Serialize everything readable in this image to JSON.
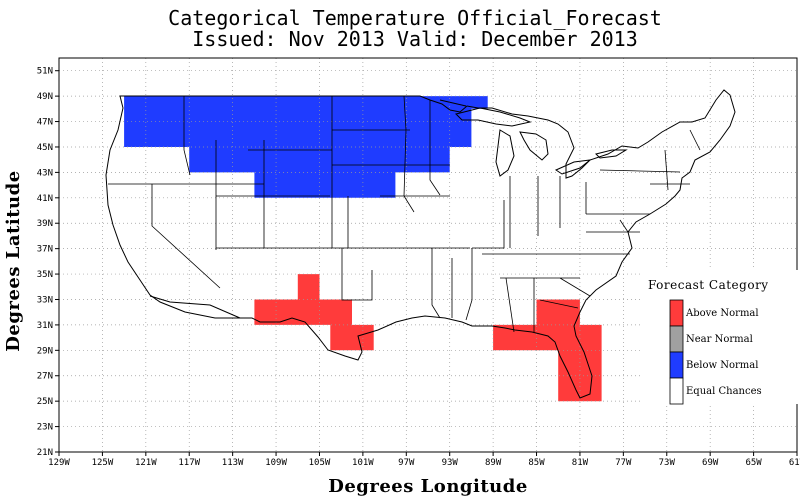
{
  "header": {
    "title_line1": "Categorical Temperature Official_Forecast",
    "title_line2": "Issued: Nov 2013 Valid: December 2013"
  },
  "axes": {
    "xlabel": "Degrees Longitude",
    "ylabel": "Degrees Latitude"
  },
  "chart_data": {
    "type": "heatmap",
    "title": "Categorical Temperature Official_Forecast",
    "subtitle": "Issued: Nov 2013 Valid: December 2013",
    "xlabel": "Degrees Longitude",
    "ylabel": "Degrees Latitude",
    "xlim": [
      -129,
      -61
    ],
    "ylim": [
      21,
      52
    ],
    "x_ticks": [
      -129,
      -125,
      -121,
      -117,
      -113,
      -109,
      -105,
      -101,
      -97,
      -93,
      -89,
      -85,
      -81,
      -77,
      -73,
      -69,
      -65,
      -61
    ],
    "x_tick_labels": [
      "129W",
      "125W",
      "121W",
      "117W",
      "113W",
      "109W",
      "105W",
      "101W",
      "97W",
      "93W",
      "89W",
      "85W",
      "81W",
      "77W",
      "73W",
      "69W",
      "65W",
      "61W"
    ],
    "y_ticks": [
      21,
      23,
      25,
      27,
      29,
      31,
      33,
      35,
      37,
      39,
      41,
      43,
      45,
      47,
      49,
      51
    ],
    "y_tick_labels": [
      "21N",
      "23N",
      "25N",
      "27N",
      "29N",
      "31N",
      "33N",
      "35N",
      "37N",
      "39N",
      "41N",
      "43N",
      "45N",
      "47N",
      "49N",
      "51N"
    ],
    "grid": true,
    "regions": [
      {
        "category": "Below Normal",
        "polygon": [
          [
            -123,
            49
          ],
          [
            -89.5,
            49
          ],
          [
            -89.5,
            48
          ],
          [
            -91,
            48
          ],
          [
            -91,
            45
          ],
          [
            -93,
            45
          ],
          [
            -93,
            43
          ],
          [
            -98,
            43
          ],
          [
            -98,
            41
          ],
          [
            -111,
            41
          ],
          [
            -111,
            43
          ],
          [
            -117,
            43
          ],
          [
            -117,
            45
          ],
          [
            -123,
            45
          ]
        ]
      },
      {
        "category": "Above Normal",
        "polygon": [
          [
            -111,
            33
          ],
          [
            -107,
            33
          ],
          [
            -107,
            35
          ],
          [
            -105,
            35
          ],
          [
            -105,
            33
          ],
          [
            -102,
            33
          ],
          [
            -102,
            31
          ],
          [
            -100,
            31
          ],
          [
            -100,
            29
          ],
          [
            -104,
            29
          ],
          [
            -104,
            31
          ],
          [
            -111,
            31
          ]
        ]
      },
      {
        "category": "Above Normal",
        "polygon": [
          [
            -85,
            33
          ],
          [
            -81,
            33
          ],
          [
            -81,
            31
          ],
          [
            -79,
            31
          ],
          [
            -79,
            25
          ],
          [
            -83,
            25
          ],
          [
            -83,
            29
          ],
          [
            -89,
            29
          ],
          [
            -89,
            31
          ],
          [
            -85,
            31
          ]
        ]
      }
    ],
    "legend": {
      "title": "Forecast Category",
      "position": "right",
      "entries": [
        {
          "label": "Above Normal",
          "color": "#ff3b3b"
        },
        {
          "label": "Near Normal",
          "color": "#a0a0a0"
        },
        {
          "label": "Below Normal",
          "color": "#1f3cff"
        },
        {
          "label": "Equal Chances",
          "color": "#ffffff"
        }
      ]
    }
  }
}
